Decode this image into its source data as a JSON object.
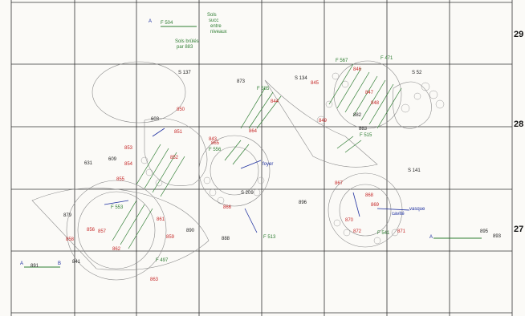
{
  "grid": {
    "row_numbers": [
      "29",
      "28",
      "27"
    ],
    "corner_label": "B"
  },
  "labels": {
    "black": [
      "S 137",
      "S 134",
      "S 144",
      "603",
      "631",
      "609",
      "625",
      "873",
      "874",
      "882",
      "883",
      "884",
      "896",
      "860",
      "890",
      "888",
      "879",
      "893",
      "S 141",
      "S 209",
      "S 98",
      "S 47",
      "S 191",
      "S 106",
      "S 52",
      "895",
      "615"
    ],
    "red": [
      "843",
      "844",
      "845",
      "846",
      "847",
      "848",
      "849",
      "850",
      "851",
      "852",
      "853",
      "854",
      "855",
      "856",
      "857",
      "858",
      "859",
      "861",
      "862",
      "863",
      "864",
      "865",
      "866",
      "867",
      "868",
      "869",
      "870",
      "871",
      "872",
      "875",
      "876",
      "877",
      "878",
      "880",
      "881",
      "885",
      "886",
      "887",
      "889",
      "891",
      "892",
      "894"
    ],
    "green": [
      "F 504",
      "F 567",
      "F 471",
      "F 585",
      "F 556",
      "F 515",
      "F 513",
      "F 497",
      "F 504",
      "F 553",
      "F 541",
      "F 496",
      "F 517",
      "F 511"
    ],
    "blue": [
      "vasque",
      "foyer",
      "cavité",
      "A",
      "A"
    ],
    "legend_top": [
      "Sols",
      "succ",
      "entre",
      "niveaux"
    ],
    "legend_top_2": [
      "Sols brûlés",
      "par 883"
    ],
    "legend_bottom": [
      "A",
      "B",
      "891",
      "841"
    ],
    "legend_right": [
      "A",
      "893",
      "895"
    ]
  }
}
